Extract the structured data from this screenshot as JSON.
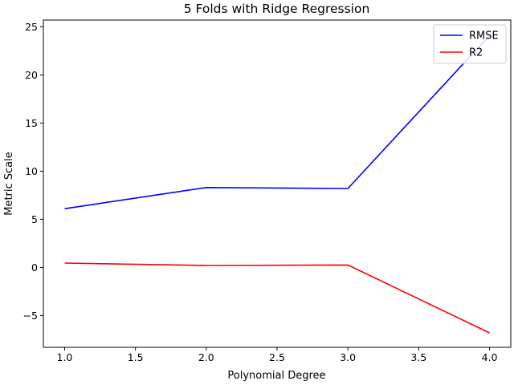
{
  "chart_data": {
    "type": "line",
    "title": "5 Folds with Ridge Regression",
    "xlabel": "Polynomial Degree",
    "ylabel": "Metric Scale",
    "xlim": [
      0.85,
      4.15
    ],
    "ylim": [
      -8.3,
      25.7
    ],
    "xticks": [
      1.0,
      1.5,
      2.0,
      2.5,
      3.0,
      3.5,
      4.0
    ],
    "xtick_labels": [
      "1.0",
      "1.5",
      "2.0",
      "2.5",
      "3.0",
      "3.5",
      "4.0"
    ],
    "yticks": [
      -5,
      0,
      5,
      10,
      15,
      20,
      25
    ],
    "ytick_labels": [
      "−5",
      "0",
      "5",
      "10",
      "15",
      "20",
      "25"
    ],
    "grid": false,
    "legend_position": "top-right",
    "x": [
      1,
      2,
      3,
      4
    ],
    "series": [
      {
        "name": "RMSE",
        "color": "#0000ff",
        "values": [
          6.1,
          8.3,
          8.2,
          24.1
        ]
      },
      {
        "name": "R2",
        "color": "#ff0000",
        "values": [
          0.45,
          0.2,
          0.25,
          -6.8
        ]
      }
    ]
  }
}
